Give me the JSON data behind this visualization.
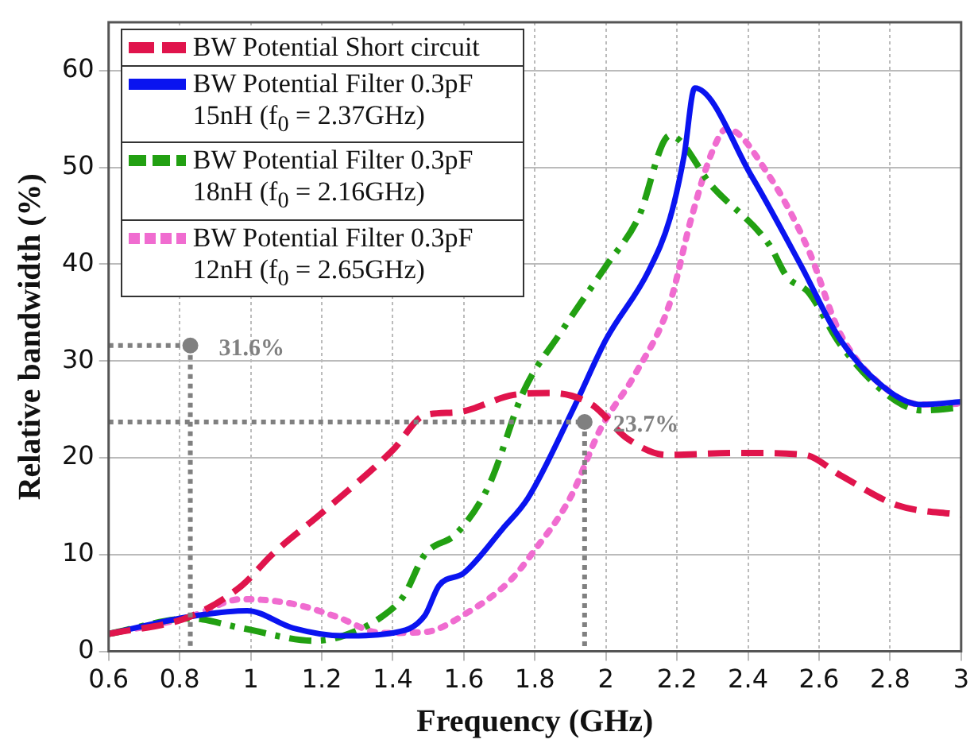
{
  "chart_data": {
    "type": "line",
    "xlabel": "Frequency (GHz)",
    "ylabel": "Relative bandwidth (%)",
    "xlim": [
      0.6,
      3
    ],
    "xticks": [
      0.6,
      0.8,
      1,
      1.2,
      1.4,
      1.6,
      1.8,
      2,
      2.2,
      2.4,
      2.6,
      2.8,
      3
    ],
    "ylim": [
      0,
      65
    ],
    "yticks": [
      0,
      10,
      20,
      30,
      40,
      50,
      60
    ],
    "grid": true,
    "legend": "top left",
    "marker": "none",
    "series": [
      {
        "name": "BW Potential Short circuit",
        "color": "#e0144c",
        "line_style": "dashed",
        "x": [
          0.6,
          0.83,
          0.975,
          1.06,
          1.2,
          1.4,
          1.49,
          1.58,
          1.74,
          1.84,
          1.96,
          2.06,
          2.17,
          2.37,
          2.56,
          2.66,
          2.82,
          3
        ],
        "values": [
          1.8,
          3.6,
          6.8,
          10,
          14.3,
          20.8,
          24.4,
          24.7,
          26.5,
          26.7,
          25.5,
          22,
          20.3,
          20.5,
          20.3,
          18.2,
          15.1,
          14.1
        ]
      },
      {
        "name": "BW Potential Filter 0.3pF 15nH (f$_{0}$ = 2.37GHz)",
        "color": "#0a14f0",
        "line_style": "solid",
        "x": [
          0.6,
          0.83,
          0.99,
          1.12,
          1.26,
          1.4,
          1.49,
          1.53,
          1.6,
          1.71,
          1.78,
          1.91,
          2,
          2.12,
          2.18,
          2.22,
          2.25,
          2.41,
          2.55,
          2.66,
          2.8,
          2.89,
          3
        ],
        "values": [
          1.8,
          3.6,
          4.2,
          2.4,
          1.6,
          1.9,
          3.7,
          6.8,
          8.1,
          12.7,
          15.8,
          25.2,
          32.2,
          39.3,
          44.7,
          51.2,
          58.2,
          49.1,
          39.8,
          32.2,
          26.8,
          25.5,
          25.8
        ]
      },
      {
        "name": "BW Potential Filter 0.3pF 18nH (f$_{0}$ = 2.16GHz)",
        "color": "#22a012",
        "line_style": "dashdot",
        "x": [
          0.6,
          0.83,
          0.975,
          1.18,
          1.26,
          1.37,
          1.43,
          1.49,
          1.58,
          1.67,
          1.77,
          1.87,
          2,
          2.09,
          2.18,
          2.3,
          2.46,
          2.51,
          2.57,
          2.66,
          2.8,
          2.89,
          3
        ],
        "values": [
          1.8,
          3.4,
          2.4,
          1.1,
          1.6,
          3.6,
          5.7,
          10,
          12.2,
          17.1,
          27,
          32.8,
          39.8,
          44.7,
          53.3,
          48,
          42,
          38.7,
          37.1,
          31.7,
          26.3,
          24.9,
          25.2
        ]
      },
      {
        "name": "BW Potential Filter 0.3pF 12nH (f$_{0}$ = 2.65GHz)",
        "color": "#f06cd0",
        "line_style": "dotted",
        "x": [
          0.6,
          0.83,
          0.975,
          1.12,
          1.24,
          1.37,
          1.49,
          1.61,
          1.73,
          1.79,
          1.9,
          1.985,
          2.08,
          2.18,
          2.24,
          2.3,
          2.34,
          2.46,
          2.57,
          2.66,
          2.8,
          2.89,
          3
        ],
        "values": [
          1.8,
          3.6,
          5.4,
          4.9,
          3.6,
          1.9,
          2,
          4,
          7.3,
          10,
          15.9,
          23,
          28.5,
          36,
          44.7,
          51.7,
          54,
          49.1,
          41.5,
          32.8,
          26.8,
          25.5,
          25.6
        ]
      }
    ],
    "annotations": [
      {
        "text": "31.6%",
        "x": 0.83,
        "y": 31.6
      },
      {
        "text": "23.7%",
        "x": 1.94,
        "y": 23.7
      }
    ]
  }
}
